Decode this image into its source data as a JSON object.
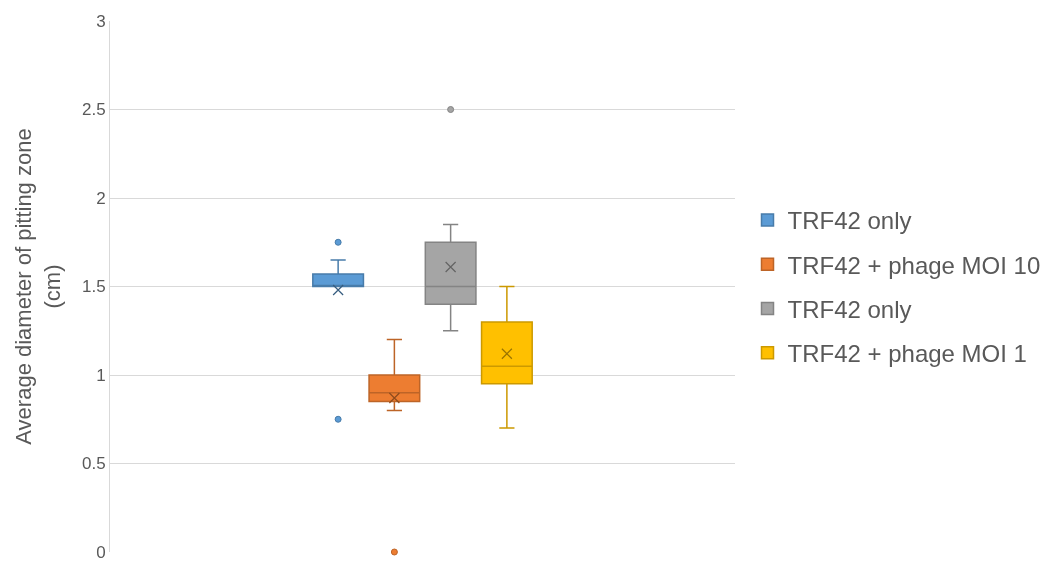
{
  "chart_data": {
    "type": "box",
    "ylabel": "Average diameter of pitting zone (cm)",
    "categories": [
      null
    ],
    "ylim": [
      0,
      3
    ],
    "yticks": [
      0,
      0.5,
      1,
      1.5,
      2,
      2.5,
      3
    ],
    "grid": "y",
    "legend": "right",
    "series": [
      {
        "name": "TRF42 only",
        "color": "#5b9bd5",
        "boxes": [
          {
            "low": 1.5,
            "q1": 1.5,
            "median": 1.5,
            "q3": 1.57,
            "high": 1.65,
            "mean": 1.48,
            "outliers": [
              1.75,
              0.75
            ]
          }
        ]
      },
      {
        "name": "TRF42 + phage MOI 10",
        "color": "#ed7d31",
        "boxes": [
          {
            "low": 0.8,
            "q1": 0.85,
            "median": 0.9,
            "q3": 1.0,
            "high": 1.2,
            "mean": 0.87,
            "outliers": [
              0
            ]
          }
        ]
      },
      {
        "name": "TRF42 only",
        "color": "#a5a5a5",
        "boxes": [
          {
            "low": 1.25,
            "q1": 1.4,
            "median": 1.5,
            "q3": 1.75,
            "high": 1.85,
            "mean": 1.61,
            "outliers": [
              2.5
            ]
          }
        ]
      },
      {
        "name": "TRF42 + phage MOI 1",
        "color": "#ffc000",
        "boxes": [
          {
            "low": 0.7,
            "q1": 0.95,
            "median": 1.05,
            "q3": 1.3,
            "high": 1.5,
            "mean": 1.12
          }
        ]
      }
    ]
  }
}
